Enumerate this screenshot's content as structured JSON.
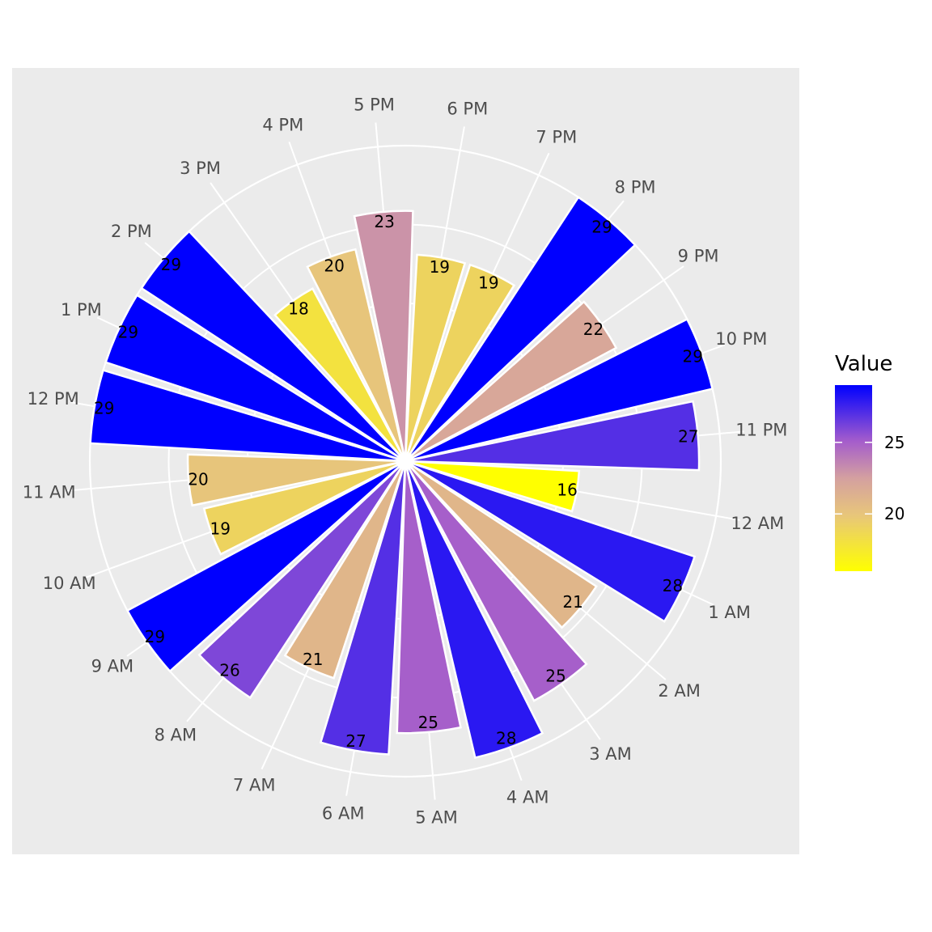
{
  "chart_data": {
    "type": "bar",
    "coord": "polar",
    "title": "",
    "xlabel": "",
    "ylabel": "",
    "categories": [
      "12 AM",
      "1 AM",
      "2 AM",
      "3 AM",
      "4 AM",
      "5 AM",
      "6 AM",
      "7 AM",
      "8 AM",
      "9 AM",
      "10 AM",
      "11 AM",
      "12 PM",
      "1 PM",
      "2 PM",
      "3 PM",
      "4 PM",
      "5 PM",
      "6 PM",
      "7 PM",
      "8 PM",
      "9 PM",
      "10 PM",
      "11 PM"
    ],
    "values": [
      16,
      28,
      21,
      25,
      28,
      25,
      27,
      21,
      26,
      29,
      19,
      20,
      29,
      29,
      29,
      18,
      20,
      23,
      19,
      19,
      29,
      22,
      29,
      27
    ],
    "ylim": [
      0,
      29
    ],
    "grid": true,
    "background": "#ebebeb",
    "bar_outline": "#ffffff",
    "legend": {
      "title": "Value",
      "position": "right",
      "ticks": [
        20,
        25
      ],
      "range": [
        16,
        29
      ],
      "colors": [
        "#ffff00",
        "#0000ff"
      ]
    }
  }
}
